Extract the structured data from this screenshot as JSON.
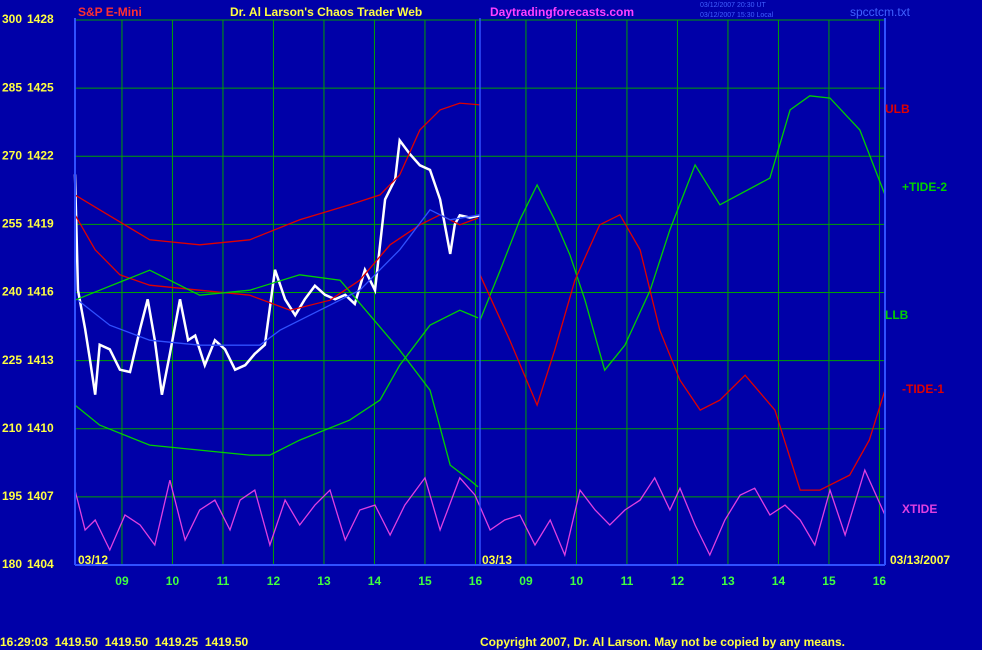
{
  "chart_data": {
    "type": "line",
    "title": "Dr. Al Larson's Chaos Trader Web",
    "subtitle": "S&P E-Mini",
    "site": "Daytradingforecasts.com",
    "timestamps": [
      "03/12/2007 20:30 UT",
      "03/12/2007 15:30 Local"
    ],
    "file": "spcctcm.txt",
    "dates": [
      "03/12",
      "03/13",
      "03/13/2007"
    ],
    "status": "16:29:03  1419.50  1419.50  1419.25  1419.50",
    "copyright": "Copyright 2007, Dr. Al Larson. May not be copied by any means.",
    "grid": true,
    "grid_color": "#00a000",
    "background": "#0000a8",
    "xlim": [
      0.07,
      16.11
    ],
    "xticks": [
      {
        "value": 1,
        "label": "09"
      },
      {
        "value": 2,
        "label": "10"
      },
      {
        "value": 3,
        "label": "11"
      },
      {
        "value": 4,
        "label": "12"
      },
      {
        "value": 5,
        "label": "13"
      },
      {
        "value": 6,
        "label": "14"
      },
      {
        "value": 7,
        "label": "15"
      },
      {
        "value": 8,
        "label": "16"
      },
      {
        "value": 9,
        "label": "09"
      },
      {
        "value": 10,
        "label": "10"
      },
      {
        "value": 11,
        "label": "11"
      },
      {
        "value": 12,
        "label": "12"
      },
      {
        "value": 13,
        "label": "13"
      },
      {
        "value": 14,
        "label": "14"
      },
      {
        "value": 15,
        "label": "15"
      },
      {
        "value": 16,
        "label": "16"
      }
    ],
    "ylim": [
      180,
      300
    ],
    "yticks": [
      300,
      285,
      270,
      255,
      240,
      225,
      210,
      195,
      180
    ],
    "y2lim": [
      1404,
      1428
    ],
    "y2ticks": [
      1428,
      1425,
      1422,
      1419,
      1416,
      1413,
      1410,
      1407,
      1404
    ],
    "series": [
      {
        "color": "#ffffff",
        "axis": "y2",
        "x": [
          0.07,
          0.13,
          0.27,
          0.37,
          0.47,
          0.56,
          0.76,
          0.96,
          1.16,
          1.36,
          1.51,
          1.65,
          1.79,
          1.95,
          2.15,
          2.31,
          2.45,
          2.64,
          2.84,
          3.04,
          3.24,
          3.44,
          3.63,
          3.83,
          4.03,
          4.23,
          4.43,
          4.62,
          4.82,
          5.02,
          5.22,
          5.42,
          5.61,
          5.81,
          6.01,
          6.21,
          6.41,
          6.5,
          6.7,
          6.9,
          7.1,
          7.3,
          7.5,
          7.59,
          7.69,
          7.89,
          8.09
        ],
        "values": [
          1421.2,
          1416.1,
          1414.4,
          1413.0,
          1411.5,
          1413.7,
          1413.5,
          1412.6,
          1412.5,
          1414.4,
          1415.7,
          1413.9,
          1411.5,
          1413.3,
          1415.7,
          1413.9,
          1414.1,
          1412.8,
          1413.9,
          1413.5,
          1412.6,
          1412.8,
          1413.3,
          1413.7,
          1417.0,
          1415.7,
          1415.0,
          1415.7,
          1416.3,
          1415.9,
          1415.7,
          1415.9,
          1415.5,
          1417.0,
          1416.1,
          1420.1,
          1421.0,
          1422.7,
          1422.1,
          1421.6,
          1421.4,
          1420.1,
          1417.7,
          1419.0,
          1419.4,
          1419.3,
          1419.4
        ]
      },
      {
        "name": "ULB",
        "color": "#e00000",
        "x": [
          0.07,
          0.56,
          1.55,
          2.54,
          3.53,
          4.52,
          5.51,
          6.11,
          6.5,
          6.9,
          7.3,
          7.69,
          8.09
        ],
        "values": [
          261.5,
          258.2,
          251.6,
          250.5,
          251.6,
          256.0,
          259.3,
          261.5,
          265.9,
          275.8,
          280.2,
          281.7,
          281.3
        ]
      },
      {
        "color": "#e00000",
        "x": [
          0.07,
          0.47,
          0.96,
          1.55,
          2.54,
          3.53,
          4.33,
          5.12,
          5.71,
          6.31,
          6.9,
          7.3,
          7.69,
          8.05
        ],
        "values": [
          257.1,
          249.4,
          243.9,
          241.6,
          240.5,
          239.4,
          236.1,
          238.3,
          242.7,
          250.5,
          254.9,
          257.1,
          254.9,
          256.4
        ]
      },
      {
        "color": "#00d000",
        "x": [
          0.07,
          0.56,
          1.55,
          2.54,
          3.53,
          4.52,
          5.32,
          5.91,
          6.5,
          7.1,
          7.5,
          7.89,
          8.05
        ],
        "values": [
          238.3,
          240.5,
          244.9,
          239.4,
          240.5,
          243.9,
          242.7,
          235.0,
          227.3,
          218.5,
          202.0,
          198.7,
          197.2
        ]
      },
      {
        "name": "LLB",
        "color": "#00d000",
        "x": [
          0.07,
          0.56,
          1.55,
          2.54,
          3.53,
          3.93,
          4.52,
          5.51,
          6.11,
          6.5,
          7.1,
          7.69,
          8.05
        ],
        "values": [
          215.2,
          210.8,
          206.4,
          205.3,
          204.2,
          204.2,
          207.5,
          211.9,
          216.3,
          224.0,
          232.8,
          236.1,
          234.4
        ]
      },
      {
        "color": "#3050ff",
        "x": [
          0.13,
          0.76,
          1.55,
          2.54,
          3.73,
          4.13,
          4.92,
          5.71,
          6.5,
          7.1,
          7.5,
          8.09
        ],
        "values": [
          238.3,
          232.8,
          229.5,
          228.4,
          228.4,
          231.7,
          236.1,
          240.5,
          249.4,
          258.2,
          256.0,
          257.1
        ]
      },
      {
        "name": "+TIDE-2",
        "color": "#00d000",
        "x": [
          8.09,
          8.49,
          8.88,
          9.22,
          9.57,
          9.87,
          10.17,
          10.56,
          10.96,
          11.46,
          11.85,
          12.35,
          12.84,
          13.83,
          14.23,
          14.62,
          15.02,
          15.61,
          16.11
        ],
        "values": [
          233.9,
          244.9,
          256.0,
          263.7,
          256.0,
          248.3,
          238.3,
          222.9,
          228.4,
          240.5,
          253.8,
          268.1,
          259.3,
          265.2,
          280.2,
          283.3,
          282.8,
          275.8,
          261.5
        ]
      },
      {
        "name": "-TIDE-1",
        "color": "#e00000",
        "x": [
          8.09,
          8.68,
          9.22,
          9.57,
          9.97,
          10.46,
          10.86,
          11.26,
          11.65,
          12.05,
          12.45,
          12.84,
          13.34,
          13.93,
          14.43,
          14.82,
          15.41,
          15.8,
          16.11
        ],
        "values": [
          243.9,
          229.5,
          215.2,
          227.3,
          242.7,
          254.9,
          257.1,
          249.4,
          231.7,
          220.7,
          214.1,
          216.3,
          221.8,
          214.1,
          196.5,
          196.5,
          199.8,
          207.5,
          218.5
        ]
      },
      {
        "name": "XTIDE",
        "color": "#e040e0",
        "x": [
          0.07,
          0.27,
          0.47,
          0.76,
          1.06,
          1.36,
          1.65,
          1.95,
          2.25,
          2.54,
          2.84,
          3.14,
          3.34,
          3.63,
          3.93,
          4.23,
          4.52,
          4.82,
          5.12,
          5.42,
          5.71,
          6.01,
          6.31,
          6.6,
          7.0,
          7.3,
          7.69,
          7.99,
          8.29,
          8.58,
          8.88,
          9.18,
          9.48,
          9.77,
          10.07,
          10.37,
          10.66,
          10.96,
          11.26,
          11.55,
          11.85,
          12.05,
          12.35,
          12.64,
          12.94,
          13.24,
          13.53,
          13.83,
          14.13,
          14.43,
          14.72,
          15.02,
          15.32,
          15.71,
          16.11
        ],
        "values": [
          196.5,
          187.7,
          189.9,
          183.3,
          191.0,
          188.8,
          184.4,
          198.7,
          185.5,
          192.1,
          194.3,
          187.7,
          194.3,
          196.5,
          184.4,
          194.3,
          188.8,
          193.2,
          196.5,
          185.5,
          192.1,
          193.2,
          186.6,
          193.2,
          199.2,
          187.7,
          199.2,
          195.4,
          187.7,
          189.9,
          191.0,
          184.4,
          189.9,
          182.2,
          196.5,
          192.1,
          188.8,
          192.1,
          194.3,
          199.2,
          192.1,
          196.9,
          188.8,
          182.2,
          189.9,
          195.4,
          196.9,
          191.0,
          193.2,
          189.9,
          184.4,
          196.5,
          186.6,
          200.9,
          191.0
        ]
      }
    ]
  }
}
